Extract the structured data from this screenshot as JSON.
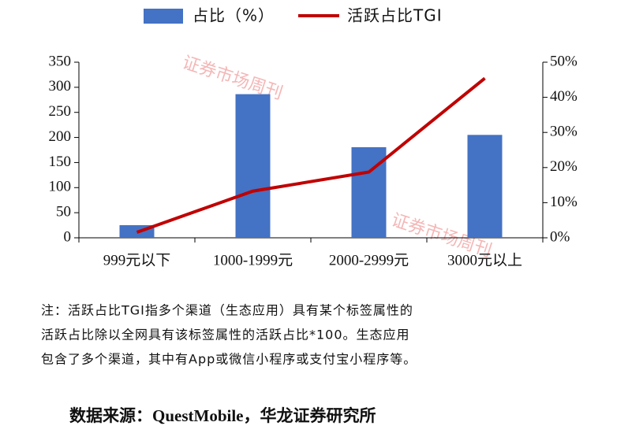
{
  "chart_data": {
    "type": "bar_line",
    "categories": [
      "999元以下",
      "1000-1999元",
      "2000-2999元",
      "3000元以上"
    ],
    "series": [
      {
        "name": "占比（%）",
        "color": "#4472c4",
        "type": "bar",
        "axis": "y2",
        "values": [
          3.6,
          40.9,
          25.8,
          29.3
        ]
      },
      {
        "name": "活跃占比TGI",
        "color": "#c00000",
        "type": "line",
        "values": [
          11,
          93,
          131,
          318
        ]
      }
    ],
    "ylim": [
      0,
      350
    ],
    "yticks": [
      0,
      50,
      100,
      150,
      200,
      250,
      300,
      350
    ],
    "y2lim": [
      0,
      50
    ],
    "y2ticks": [
      {
        "value": 0,
        "label": "0%"
      },
      {
        "value": 10,
        "label": "10%"
      },
      {
        "value": 20,
        "label": "20%"
      },
      {
        "value": 30,
        "label": "30%"
      },
      {
        "value": 40,
        "label": "40%"
      },
      {
        "value": 50,
        "label": "50%"
      }
    ],
    "watermarks": [
      "证券市场周刊",
      "证券市场周刊"
    ],
    "note": [
      "注：活跃占比TGI指多个渠道（生态应用）具有某个标签属性的",
      "活跃占比除以全网具有该标签属性的活跃占比*100。生态应用",
      "包含了多个渠道，其中有App或微信小程序或支付宝小程序等。"
    ],
    "source": "数据来源：QuestMobile，华龙证券研究所"
  }
}
